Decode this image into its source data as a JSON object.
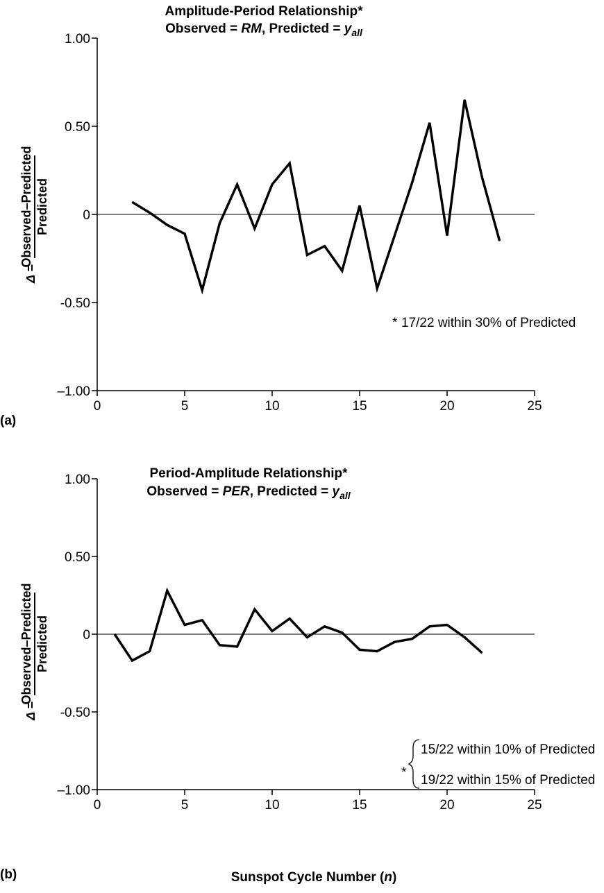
{
  "chart_data": [
    {
      "type": "line",
      "panel_label": "(a)",
      "title_line1": "Amplitude-Period Relationship*",
      "title_line2": {
        "prefix": "Observed = ",
        "observed_var": "RM",
        "middle": ", Predicted = ",
        "predicted_var": "y",
        "predicted_sub": "all"
      },
      "ylabel": {
        "delta": "Δ",
        "equals": "=",
        "numerator": "Observed–Predicted",
        "denominator": "Predicted"
      },
      "xlabel": "",
      "xlim": [
        0,
        25
      ],
      "ylim": [
        -1.0,
        1.0
      ],
      "x_ticks": [
        "0",
        "5",
        "10",
        "15",
        "20",
        "25"
      ],
      "y_ticks": [
        "1.00",
        "0.50",
        "0",
        "-0.50",
        "–1.00"
      ],
      "zero_line": true,
      "series": [
        {
          "x": [
            2,
            3,
            4,
            5,
            6,
            7,
            8,
            9,
            10,
            11,
            12,
            13,
            14,
            15,
            16,
            17,
            18,
            19,
            20,
            21,
            22,
            23
          ],
          "y": [
            0.07,
            0.01,
            -0.06,
            -0.11,
            -0.43,
            -0.05,
            0.17,
            -0.08,
            0.17,
            0.29,
            -0.23,
            -0.18,
            -0.32,
            0.05,
            -0.42,
            -0.12,
            0.18,
            0.52,
            -0.12,
            0.65,
            0.21,
            -0.15
          ]
        }
      ],
      "annotation": {
        "marker": "*",
        "lines": [
          "17/22 within 30% of Predicted"
        ]
      }
    },
    {
      "type": "line",
      "panel_label": "(b)",
      "title_line1": "Period-Amplitude Relationship*",
      "title_line2": {
        "prefix": "Observed = ",
        "observed_var": "PER",
        "middle": ", Predicted = ",
        "predicted_var": "y",
        "predicted_sub": "all"
      },
      "ylabel": {
        "delta": "Δ",
        "equals": "=",
        "numerator": "Observed–Predicted",
        "denominator": "Predicted"
      },
      "xlabel": {
        "text": "Sunspot Cycle Number (",
        "var": "n",
        "close": ")"
      },
      "xlim": [
        0,
        25
      ],
      "ylim": [
        -1.0,
        1.0
      ],
      "x_ticks": [
        "0",
        "5",
        "10",
        "15",
        "20",
        "25"
      ],
      "y_ticks": [
        "1.00",
        "0.50",
        "0",
        "-0.50",
        "–1.00"
      ],
      "zero_line": true,
      "series": [
        {
          "x": [
            1,
            2,
            3,
            4,
            5,
            6,
            7,
            8,
            9,
            10,
            11,
            12,
            13,
            14,
            15,
            16,
            17,
            18,
            19,
            20,
            21,
            22
          ],
          "y": [
            0.0,
            -0.17,
            -0.11,
            0.28,
            0.06,
            0.09,
            -0.07,
            -0.08,
            0.16,
            0.02,
            0.1,
            -0.02,
            0.05,
            0.01,
            -0.1,
            -0.11,
            -0.05,
            -0.03,
            0.05,
            0.06,
            -0.02,
            -0.12
          ]
        }
      ],
      "annotation": {
        "marker": "*",
        "lines": [
          "15/22 within 10% of Predicted",
          "19/22 within 15% of Predicted"
        ]
      }
    }
  ]
}
